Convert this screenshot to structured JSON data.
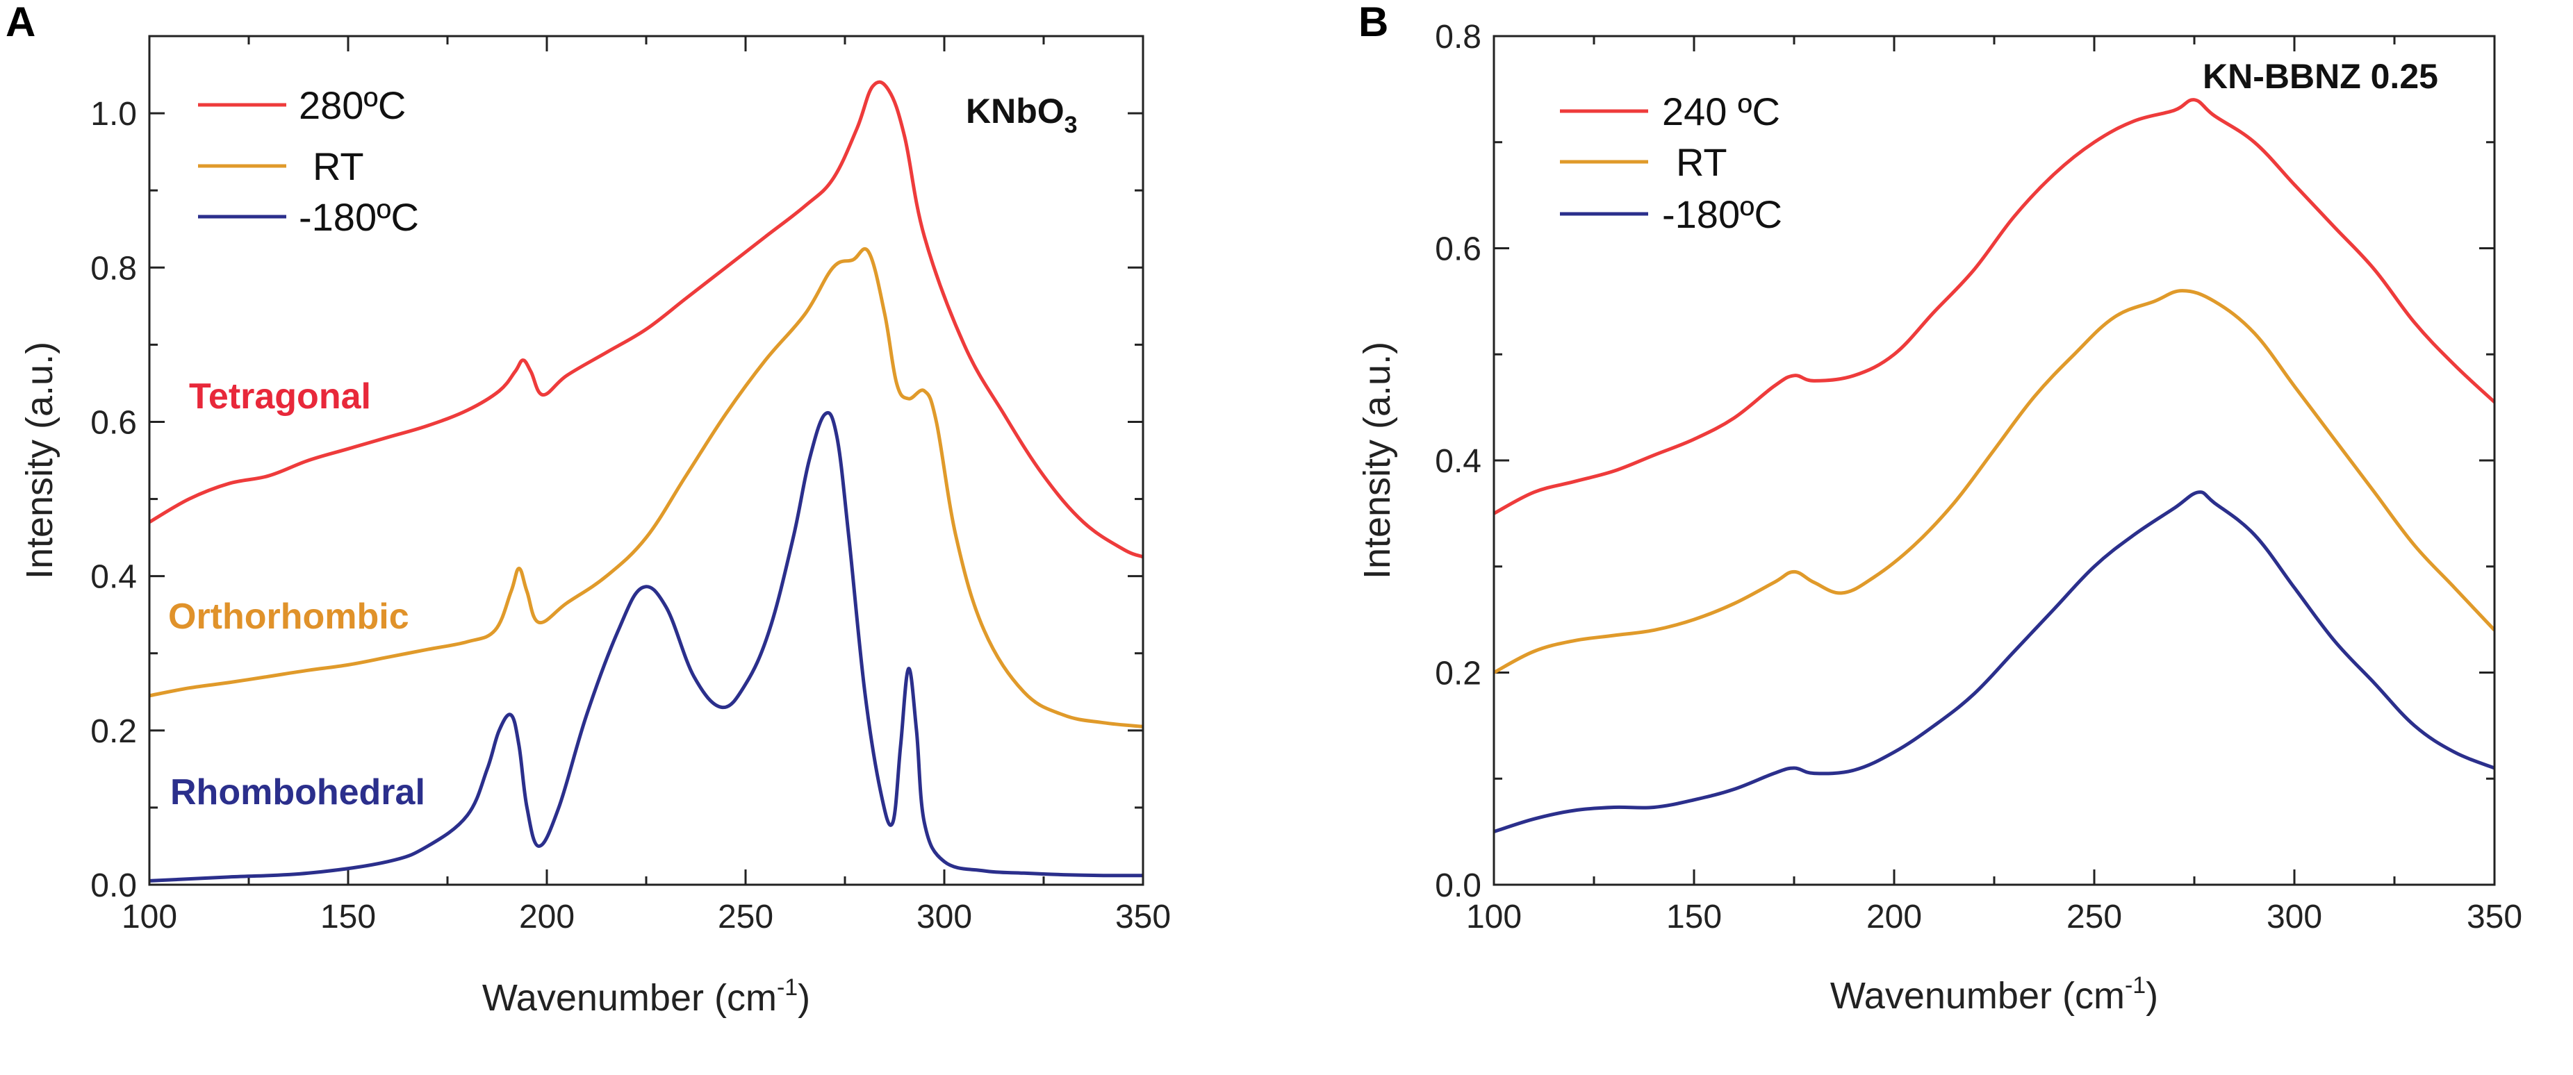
{
  "chart_data": [
    {
      "panel": "A",
      "type": "line",
      "sample": "KNbO",
      "sample_subscript": "3",
      "xlabel": "Wavenumber (cm",
      "xlabel_sup": "-1",
      "xlabel_close": ")",
      "ylabel": "Intensity (a.u.)",
      "xlim": [
        100,
        350
      ],
      "ylim": [
        0,
        1.1
      ],
      "x_ticks": [
        "100",
        "150",
        "200",
        "250",
        "300",
        "350"
      ],
      "y_ticks": [
        "0.0",
        "0.2",
        "0.4",
        "0.6",
        "0.8",
        "1.0"
      ],
      "series": [
        {
          "name": "280ºC",
          "color": "#ee3b3b",
          "phase": "Tetragonal",
          "x": [
            100,
            110,
            120,
            130,
            140,
            150,
            160,
            170,
            180,
            188,
            192,
            194,
            196,
            199,
            205,
            215,
            225,
            235,
            245,
            255,
            265,
            272,
            278,
            282,
            286,
            290,
            295,
            305,
            315,
            325,
            335,
            345,
            350
          ],
          "y": [
            0.47,
            0.5,
            0.52,
            0.53,
            0.55,
            0.565,
            0.58,
            0.595,
            0.615,
            0.64,
            0.665,
            0.68,
            0.665,
            0.635,
            0.66,
            0.69,
            0.72,
            0.76,
            0.8,
            0.84,
            0.88,
            0.915,
            0.98,
            1.035,
            1.03,
            0.97,
            0.84,
            0.7,
            0.61,
            0.53,
            0.47,
            0.435,
            0.425
          ]
        },
        {
          "name": "RT",
          "color": "#e09a2a",
          "phase": "Orthorhombic",
          "x": [
            100,
            110,
            120,
            130,
            140,
            150,
            160,
            170,
            180,
            187,
            191,
            193,
            195,
            198,
            205,
            215,
            225,
            235,
            245,
            255,
            265,
            272,
            277,
            281,
            285,
            288,
            291,
            295,
            298,
            303,
            310,
            320,
            330,
            340,
            350
          ],
          "y": [
            0.245,
            0.255,
            0.262,
            0.27,
            0.278,
            0.285,
            0.295,
            0.305,
            0.315,
            0.33,
            0.38,
            0.41,
            0.38,
            0.34,
            0.365,
            0.4,
            0.45,
            0.53,
            0.61,
            0.68,
            0.74,
            0.8,
            0.81,
            0.82,
            0.74,
            0.65,
            0.63,
            0.64,
            0.6,
            0.45,
            0.33,
            0.25,
            0.22,
            0.21,
            0.205
          ]
        },
        {
          "name": "-180ºC",
          "color": "#2b2f8c",
          "phase": "Rhombohedral",
          "x": [
            100,
            120,
            140,
            160,
            170,
            180,
            185,
            188,
            191,
            193,
            195,
            198,
            203,
            210,
            218,
            224,
            230,
            237,
            244,
            250,
            256,
            262,
            266,
            270,
            273,
            276,
            280,
            284,
            287,
            289,
            291,
            293,
            295,
            300,
            310,
            320,
            330,
            340,
            350
          ],
          "y": [
            0.005,
            0.01,
            0.015,
            0.03,
            0.05,
            0.09,
            0.15,
            0.2,
            0.22,
            0.18,
            0.1,
            0.05,
            0.1,
            0.22,
            0.33,
            0.385,
            0.36,
            0.27,
            0.23,
            0.26,
            0.33,
            0.45,
            0.55,
            0.61,
            0.58,
            0.45,
            0.25,
            0.12,
            0.08,
            0.18,
            0.28,
            0.2,
            0.08,
            0.03,
            0.018,
            0.015,
            0.013,
            0.012,
            0.012
          ]
        }
      ]
    },
    {
      "panel": "B",
      "type": "line",
      "sample": "KN-BBNZ 0.25",
      "xlabel": "Wavenumber (cm",
      "xlabel_sup": "-1",
      "xlabel_close": ")",
      "ylabel": "Intensity (a.u.)",
      "xlim": [
        100,
        350
      ],
      "ylim": [
        0,
        0.8
      ],
      "x_ticks": [
        "100",
        "150",
        "200",
        "250",
        "300",
        "350"
      ],
      "y_ticks": [
        "0.0",
        "0.2",
        "0.4",
        "0.6",
        "0.8"
      ],
      "series": [
        {
          "name": "240 ºC",
          "color": "#ee3b3b",
          "x": [
            100,
            110,
            120,
            130,
            140,
            150,
            160,
            170,
            175,
            180,
            190,
            200,
            210,
            220,
            230,
            240,
            250,
            260,
            270,
            275,
            280,
            290,
            300,
            310,
            320,
            330,
            340,
            350
          ],
          "y": [
            0.35,
            0.37,
            0.38,
            0.39,
            0.405,
            0.42,
            0.44,
            0.47,
            0.48,
            0.475,
            0.48,
            0.5,
            0.54,
            0.58,
            0.63,
            0.67,
            0.7,
            0.72,
            0.73,
            0.74,
            0.725,
            0.7,
            0.66,
            0.62,
            0.58,
            0.53,
            0.49,
            0.455
          ]
        },
        {
          "name": "RT",
          "color": "#e09a2a",
          "x": [
            100,
            110,
            120,
            130,
            140,
            150,
            160,
            170,
            175,
            180,
            187,
            195,
            205,
            215,
            225,
            235,
            245,
            255,
            265,
            272,
            280,
            290,
            300,
            310,
            320,
            330,
            340,
            350
          ],
          "y": [
            0.2,
            0.22,
            0.23,
            0.235,
            0.24,
            0.25,
            0.265,
            0.285,
            0.295,
            0.285,
            0.275,
            0.29,
            0.32,
            0.36,
            0.41,
            0.46,
            0.5,
            0.535,
            0.55,
            0.56,
            0.55,
            0.52,
            0.47,
            0.42,
            0.37,
            0.32,
            0.28,
            0.24
          ]
        },
        {
          "name": "-180ºC",
          "color": "#2b2f8c",
          "x": [
            100,
            110,
            120,
            130,
            140,
            150,
            160,
            170,
            175,
            180,
            190,
            200,
            210,
            220,
            230,
            240,
            250,
            260,
            270,
            276,
            280,
            290,
            300,
            310,
            320,
            330,
            340,
            350
          ],
          "y": [
            0.05,
            0.062,
            0.07,
            0.073,
            0.073,
            0.08,
            0.09,
            0.105,
            0.11,
            0.105,
            0.108,
            0.125,
            0.15,
            0.18,
            0.22,
            0.26,
            0.3,
            0.33,
            0.355,
            0.37,
            0.36,
            0.33,
            0.28,
            0.23,
            0.19,
            0.15,
            0.125,
            0.11
          ]
        }
      ]
    }
  ]
}
